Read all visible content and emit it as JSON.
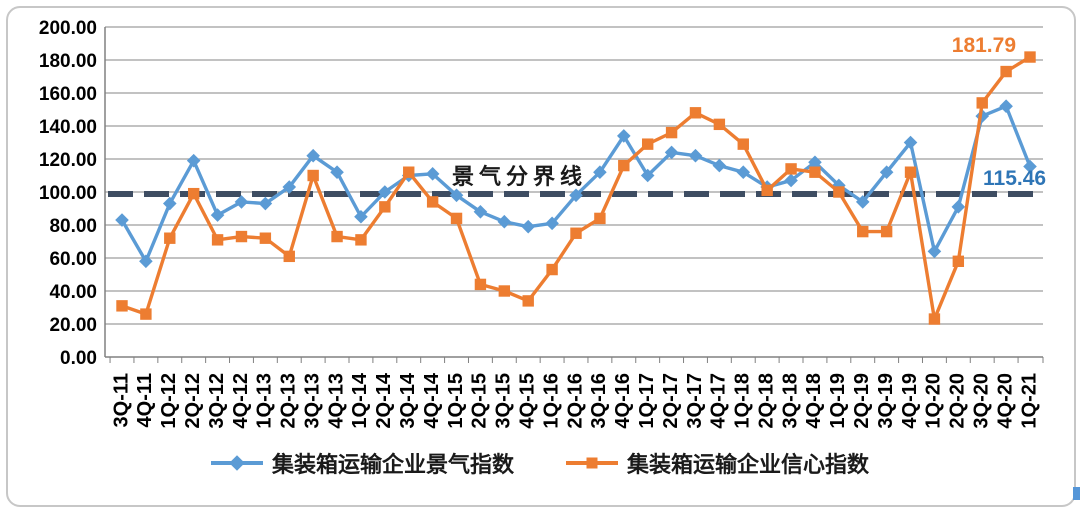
{
  "chart_data": {
    "type": "line",
    "title": "",
    "categories": [
      "3Q-11",
      "4Q-11",
      "1Q-12",
      "2Q-12",
      "3Q-12",
      "4Q-12",
      "1Q-13",
      "2Q-13",
      "3Q-13",
      "4Q-13",
      "1Q-14",
      "2Q-14",
      "3Q-14",
      "4Q-14",
      "1Q-15",
      "2Q-15",
      "3Q-15",
      "4Q-15",
      "1Q-16",
      "2Q-16",
      "3Q-16",
      "4Q-16",
      "1Q-17",
      "2Q-17",
      "3Q-17",
      "4Q-17",
      "1Q-18",
      "2Q-18",
      "3Q-18",
      "4Q-18",
      "1Q-19",
      "2Q-19",
      "3Q-19",
      "4Q-19",
      "1Q-20",
      "2Q-20",
      "3Q-20",
      "4Q-20",
      "1Q-21"
    ],
    "series": [
      {
        "name": "集装箱运输企业景气指数",
        "color": "#5B9BD5",
        "marker": "diamond",
        "values": [
          83,
          58,
          93,
          119,
          86,
          94,
          93,
          103,
          122,
          112,
          85,
          100,
          110,
          111,
          98,
          88,
          82,
          79,
          81,
          98,
          112,
          134,
          110,
          124,
          122,
          116,
          112,
          103,
          107,
          118,
          104,
          94,
          112,
          130,
          64,
          91,
          146,
          152,
          115.46
        ]
      },
      {
        "name": "集装箱运输企业信心指数",
        "color": "#ED7D31",
        "marker": "square",
        "values": [
          31,
          26,
          72,
          99,
          71,
          73,
          72,
          61,
          110,
          73,
          71,
          91,
          112,
          94,
          84,
          44,
          40,
          34,
          53,
          75,
          84,
          116,
          129,
          136,
          148,
          141,
          129,
          101,
          114,
          112,
          100,
          76,
          76,
          112,
          23,
          58,
          154,
          173,
          181.79
        ]
      }
    ],
    "threshold": {
      "label": "景气分界线",
      "value": 100,
      "color": "#3E4D62"
    },
    "annotations": [
      {
        "text": "181.79",
        "series": "集装箱运输企业信心指数",
        "category": "1Q-21",
        "color": "#ED7D31"
      },
      {
        "text": "115.46",
        "series": "集装箱运输企业景气指数",
        "category": "1Q-21",
        "color": "#2E75B6"
      }
    ],
    "ylim": [
      0,
      200
    ],
    "y_tick_step": 20,
    "y_tick_labels": [
      "0.00",
      "20.00",
      "40.00",
      "60.00",
      "80.00",
      "100.00",
      "120.00",
      "140.00",
      "160.00",
      "180.00",
      "200.00"
    ],
    "grid": true,
    "legend_position": "bottom",
    "axis_color": "#808080",
    "gridline_color": "#9d9d9d",
    "tick_label_color": "#000000"
  }
}
